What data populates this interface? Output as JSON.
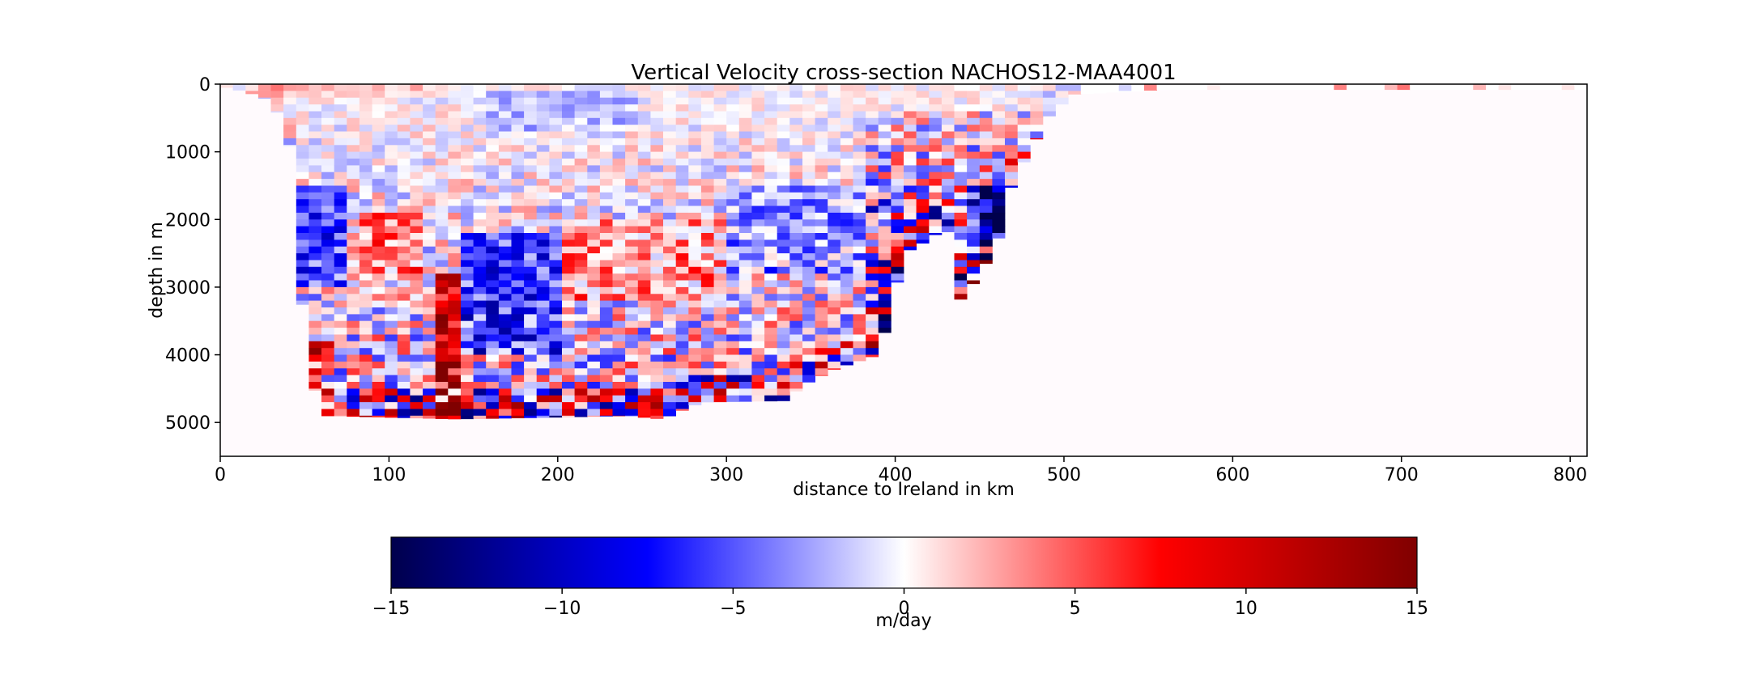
{
  "chart_data": {
    "type": "heatmap",
    "title": "Vertical Velocity cross-section NACHOS12-MAA4001",
    "xlabel": "distance to Ireland in km",
    "ylabel": "depth in m",
    "xlim": [
      0,
      810
    ],
    "ylim": [
      5500,
      0
    ],
    "xticks": [
      0,
      100,
      200,
      300,
      400,
      500,
      600,
      700,
      800
    ],
    "yticks": [
      0,
      1000,
      2000,
      3000,
      4000,
      5000
    ],
    "colormap": "seismic",
    "colormap_stops": [
      "#00004c",
      "#0000ff",
      "#ffffff",
      "#ff0000",
      "#800000"
    ],
    "colorbar": {
      "label": "m/day",
      "range": [
        -15,
        15
      ],
      "ticks": [
        "−15",
        "−10",
        "−5",
        "0",
        "5",
        "10",
        "15"
      ],
      "tick_values": [
        -15,
        -10,
        -5,
        0,
        5,
        10,
        15
      ]
    },
    "bathymetry_profile_km_m": [
      [
        0,
        30
      ],
      [
        10,
        80
      ],
      [
        20,
        150
      ],
      [
        30,
        250
      ],
      [
        38,
        600
      ],
      [
        42,
        1000
      ],
      [
        46,
        2500
      ],
      [
        50,
        3600
      ],
      [
        55,
        4400
      ],
      [
        58,
        4700
      ],
      [
        62,
        4900
      ],
      [
        140,
        4950
      ],
      [
        205,
        4920
      ],
      [
        240,
        4900
      ],
      [
        262,
        4950
      ],
      [
        285,
        4700
      ],
      [
        335,
        4680
      ],
      [
        345,
        4450
      ],
      [
        365,
        4200
      ],
      [
        390,
        4000
      ],
      [
        398,
        3300
      ],
      [
        405,
        2500
      ],
      [
        420,
        2300
      ],
      [
        430,
        2100
      ],
      [
        436,
        2500
      ],
      [
        438,
        3200
      ],
      [
        445,
        3000
      ],
      [
        460,
        2400
      ],
      [
        470,
        1400
      ],
      [
        480,
        1000
      ],
      [
        490,
        500
      ],
      [
        505,
        150
      ],
      [
        560,
        80
      ],
      [
        810,
        80
      ]
    ],
    "features": [
      {
        "x": [
          80,
          120
        ],
        "depth": [
          1900,
          2900
        ],
        "w": 4
      },
      {
        "x": [
          125,
          140
        ],
        "depth": [
          2800,
          4900
        ],
        "w": 10
      },
      {
        "x": [
          145,
          200
        ],
        "depth": [
          2200,
          4000
        ],
        "w": -6
      },
      {
        "x": [
          160,
          250
        ],
        "depth": [
          150,
          700
        ],
        "w": -2
      },
      {
        "x": [
          40,
          75
        ],
        "depth": [
          1500,
          3000
        ],
        "w": -6
      },
      {
        "x": [
          50,
          70
        ],
        "depth": [
          3800,
          4300
        ],
        "w": 8
      },
      {
        "x": [
          200,
          300
        ],
        "depth": [
          2000,
          3200
        ],
        "w": 3
      },
      {
        "x": [
          300,
          400
        ],
        "depth": [
          1500,
          2800
        ],
        "w": -3
      },
      {
        "x": [
          440,
          470
        ],
        "depth": [
          1500,
          2600
        ],
        "w": -10
      },
      {
        "x": [
          20,
          130
        ],
        "depth": [
          0,
          200
        ],
        "w": 2
      }
    ]
  }
}
